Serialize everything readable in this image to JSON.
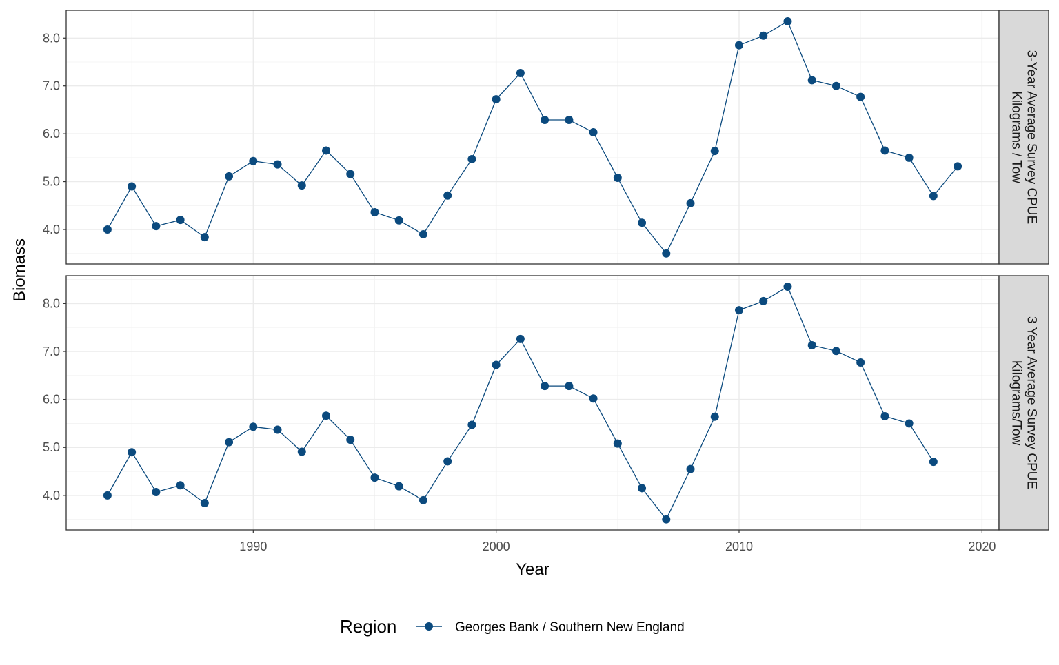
{
  "chart_data": {
    "type": "line",
    "xlabel": "Year",
    "ylabel": "Biomass",
    "xlim": [
      1982.3,
      2020.7
    ],
    "x_ticks": [
      1990,
      2000,
      2010,
      2020
    ],
    "y_ticks": [
      4.0,
      5.0,
      6.0,
      7.0,
      8.0
    ],
    "y_tick_labels": [
      "4.0",
      "5.0",
      "6.0",
      "7.0",
      "8.0"
    ],
    "x_tick_labels": [
      "1990",
      "2000",
      "2010",
      "2020"
    ],
    "color": "#0b4a7e",
    "legend": {
      "title": "Region",
      "placement": "bottom",
      "entries": [
        "Georges Bank / Southern New England"
      ]
    },
    "panels": [
      {
        "strip_label": [
          "3-Year Average Survey CPUE",
          "Kilograms / Tow"
        ],
        "ylim": [
          3.28,
          8.58
        ],
        "series": [
          {
            "name": "Georges Bank / Southern New England",
            "x": [
              1984,
              1985,
              1986,
              1987,
              1988,
              1989,
              1990,
              1991,
              1992,
              1993,
              1994,
              1995,
              1996,
              1997,
              1998,
              1999,
              2000,
              2001,
              2002,
              2003,
              2004,
              2005,
              2006,
              2007,
              2008,
              2009,
              2010,
              2011,
              2012,
              2013,
              2014,
              2015,
              2016,
              2017,
              2018,
              2019
            ],
            "values": [
              4.0,
              4.9,
              4.07,
              4.2,
              3.84,
              5.11,
              5.43,
              5.36,
              4.92,
              5.65,
              5.16,
              4.36,
              4.19,
              3.9,
              4.71,
              5.47,
              6.72,
              7.27,
              6.29,
              6.29,
              6.03,
              5.08,
              4.14,
              3.5,
              4.55,
              5.64,
              7.85,
              8.05,
              8.35,
              7.12,
              7.0,
              6.77,
              5.65,
              5.5,
              4.7,
              5.32
            ]
          }
        ]
      },
      {
        "strip_label": [
          "3 Year Average Survey CPUE",
          "Kilograms/Tow"
        ],
        "ylim": [
          3.28,
          8.58
        ],
        "series": [
          {
            "name": "Georges Bank / Southern New England",
            "x": [
              1984,
              1985,
              1986,
              1987,
              1988,
              1989,
              1990,
              1991,
              1992,
              1993,
              1994,
              1995,
              1996,
              1997,
              1998,
              1999,
              2000,
              2001,
              2002,
              2003,
              2004,
              2005,
              2006,
              2007,
              2008,
              2009,
              2010,
              2011,
              2012,
              2013,
              2014,
              2015,
              2016,
              2017,
              2018
            ],
            "values": [
              4.0,
              4.9,
              4.07,
              4.21,
              3.84,
              5.11,
              5.43,
              5.37,
              4.91,
              5.66,
              5.16,
              4.37,
              4.19,
              3.9,
              4.71,
              5.47,
              6.72,
              7.26,
              6.28,
              6.28,
              6.02,
              5.08,
              4.15,
              3.5,
              4.55,
              5.64,
              7.86,
              8.05,
              8.35,
              7.13,
              7.01,
              6.77,
              5.65,
              5.5,
              4.7
            ]
          }
        ]
      }
    ]
  }
}
